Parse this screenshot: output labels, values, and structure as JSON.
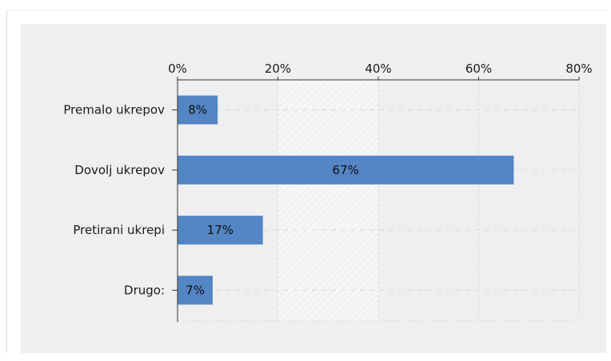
{
  "chart_data": {
    "type": "bar",
    "orientation": "horizontal",
    "categories": [
      "Premalo ukrepov",
      "Dovolj ukrepov",
      "Pretirani ukrepi",
      "Drugo:"
    ],
    "values": [
      8,
      67,
      17,
      7
    ],
    "data_labels": [
      "8%",
      "67%",
      "17%",
      "7%"
    ],
    "x_ticks": [
      "0%",
      "20%",
      "40%",
      "60%",
      "80%"
    ],
    "xlim": [
      0,
      80
    ],
    "grid": true,
    "bar_color": "#5485c4",
    "highlight_band": [
      20,
      40
    ],
    "title": "",
    "xlabel": "",
    "ylabel": ""
  }
}
